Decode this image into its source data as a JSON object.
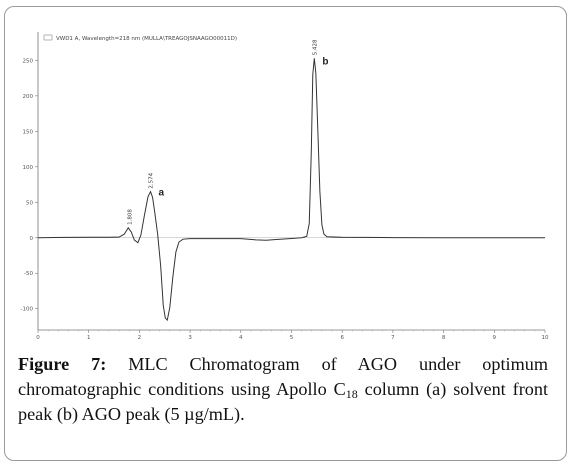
{
  "chart_data": {
    "type": "line",
    "legend": {
      "text": "VWD1 A, Wavelength=218 nm (MULLA\\TREAGOJSNAAGO00011D)",
      "placement": "top-left"
    },
    "xlim": [
      0,
      10
    ],
    "ylim": [
      -130,
      290
    ],
    "x_ticks": [
      0,
      1,
      2,
      3,
      4,
      5,
      6,
      7,
      8,
      9,
      10
    ],
    "y_ticks": [
      -100,
      -50,
      0,
      50,
      100,
      150,
      200,
      250
    ],
    "y_tick_labels": [
      "-100",
      "-50",
      "0",
      "50",
      "100",
      "150",
      "200",
      "250"
    ],
    "series": [
      {
        "points": [
          [
            0,
            0
          ],
          [
            0.5,
            0.5
          ],
          [
            1.0,
            0.8
          ],
          [
            1.4,
            0.7
          ],
          [
            1.6,
            1.0
          ],
          [
            1.7,
            5
          ],
          [
            1.78,
            14
          ],
          [
            1.84,
            8
          ],
          [
            1.9,
            -3
          ],
          [
            1.97,
            -7
          ],
          [
            2.03,
            4
          ],
          [
            2.1,
            32
          ],
          [
            2.17,
            58
          ],
          [
            2.22,
            65
          ],
          [
            2.26,
            57
          ],
          [
            2.31,
            32
          ],
          [
            2.36,
            5
          ],
          [
            2.42,
            -40
          ],
          [
            2.47,
            -95
          ],
          [
            2.51,
            -113
          ],
          [
            2.55,
            -116
          ],
          [
            2.6,
            -98
          ],
          [
            2.66,
            -55
          ],
          [
            2.72,
            -20
          ],
          [
            2.78,
            -6
          ],
          [
            2.86,
            -2
          ],
          [
            3.0,
            -1.2
          ],
          [
            3.5,
            -1.2
          ],
          [
            4.0,
            -1.2
          ],
          [
            4.3,
            -3
          ],
          [
            4.5,
            -3.5
          ],
          [
            4.7,
            -2.5
          ],
          [
            5.0,
            -1
          ],
          [
            5.2,
            0
          ],
          [
            5.3,
            2
          ],
          [
            5.35,
            20
          ],
          [
            5.39,
            120
          ],
          [
            5.42,
            230
          ],
          [
            5.45,
            253
          ],
          [
            5.48,
            232
          ],
          [
            5.52,
            150
          ],
          [
            5.56,
            65
          ],
          [
            5.6,
            18
          ],
          [
            5.64,
            5
          ],
          [
            5.7,
            1.5
          ],
          [
            6.0,
            0.8
          ],
          [
            6.5,
            0.5
          ],
          [
            7.0,
            0.2
          ],
          [
            8.0,
            0
          ],
          [
            9.0,
            0
          ],
          [
            10.0,
            0
          ]
        ]
      }
    ],
    "peak_annotations": [
      {
        "x": 1.8,
        "y": 14,
        "label": "1.808"
      },
      {
        "x": 2.22,
        "y": 65,
        "label": "2.574"
      },
      {
        "x": 5.45,
        "y": 253,
        "label": "5.428"
      }
    ],
    "peak_letters": [
      {
        "x": 2.22,
        "y": 65,
        "letter": "a"
      },
      {
        "x": 5.45,
        "y": 253,
        "letter": "b"
      }
    ]
  },
  "caption": {
    "label": "Figure 7:",
    "text_before_sub": " MLC Chromatogram of AGO under optimum chromatographic conditions using Apollo C",
    "subscript": "18",
    "text_after_sub": " column (a) solvent front peak (b) AGO peak (5 µg/mL)."
  }
}
